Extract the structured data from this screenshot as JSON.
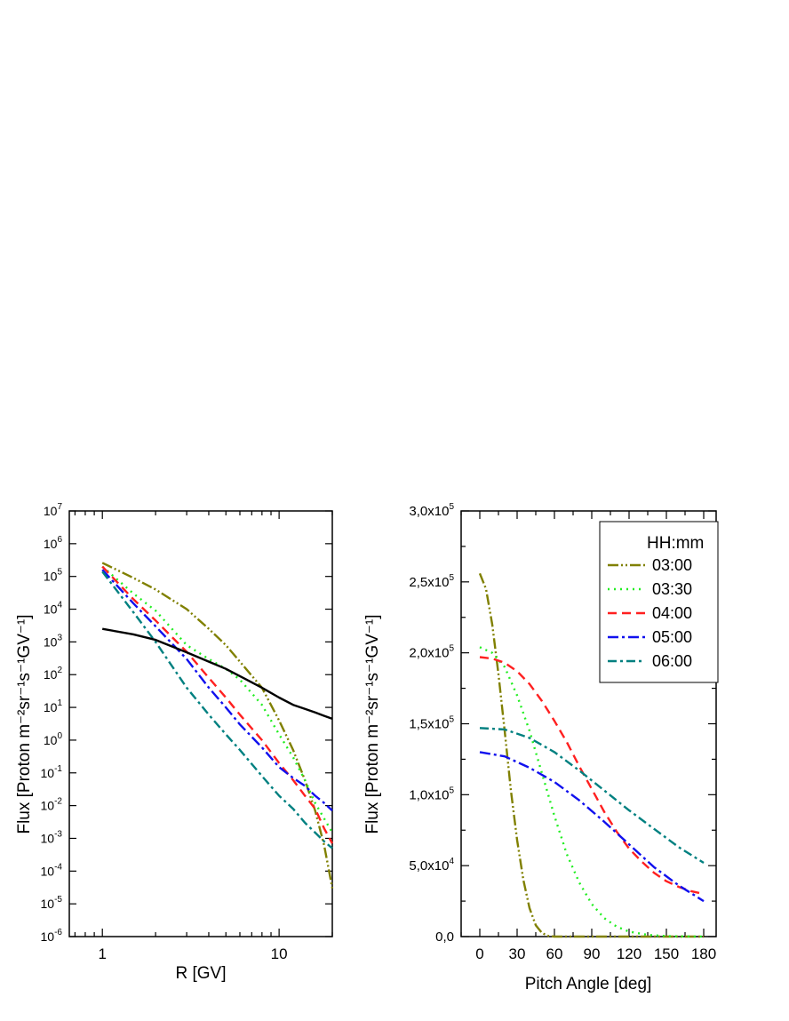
{
  "chart_data": [
    {
      "type": "line",
      "xlabel": "R [GV]",
      "ylabel": "Flux [Proton m⁻²sr⁻¹s⁻¹GV⁻¹]",
      "xscale": "log",
      "yscale": "log",
      "xlim": [
        0.65,
        20
      ],
      "ylim": [
        1e-06,
        10000000.0
      ],
      "xticks": [
        {
          "v": 1,
          "label": "1"
        },
        {
          "v": 10,
          "label": "10"
        }
      ],
      "yticks_exponents": [
        -6,
        -5,
        -4,
        -3,
        -2,
        -1,
        0,
        1,
        2,
        3,
        4,
        5,
        6,
        7
      ],
      "ytick_base": "10",
      "grid": false,
      "series": [
        {
          "color": "#808000",
          "dash": "12,3,2,3,2,3",
          "x": [
            1,
            1.5,
            2,
            3,
            4,
            5,
            6,
            8,
            10,
            12,
            14,
            16,
            18,
            20
          ],
          "y": [
            260000,
            90000,
            40000,
            10000,
            2500,
            800,
            250,
            40,
            4,
            0.5,
            0.06,
            0.007,
            0.0006,
            3e-05
          ]
        },
        {
          "color": "#22ee22",
          "dash": "2,5",
          "x": [
            1,
            1.5,
            2,
            3,
            4,
            5,
            6,
            8,
            10,
            12,
            14,
            16,
            18,
            20
          ],
          "y": [
            200000,
            30000,
            9000,
            800,
            300,
            150,
            70,
            12,
            1.5,
            0.3,
            0.06,
            0.012,
            0.004,
            0.0015
          ]
        },
        {
          "color": "#ff2020",
          "dash": "10,6",
          "x": [
            1,
            1.5,
            2,
            3,
            4,
            5,
            6,
            8,
            10,
            12,
            14,
            16,
            18,
            20
          ],
          "y": [
            200000,
            20000,
            4500,
            500,
            80,
            20,
            6,
            1,
            0.2,
            0.06,
            0.02,
            0.008,
            0.002,
            0.0007
          ]
        },
        {
          "color": "#1010ee",
          "dash": "12,4,3,4",
          "x": [
            1,
            1.5,
            2,
            3,
            4,
            5,
            6,
            8,
            10,
            12,
            14,
            16,
            18,
            20
          ],
          "y": [
            160000,
            15000,
            3000,
            300,
            40,
            10,
            3,
            0.6,
            0.15,
            0.07,
            0.04,
            0.02,
            0.012,
            0.007
          ]
        },
        {
          "color": "#008080",
          "dash": "10,4,3,4",
          "x": [
            1,
            1.5,
            2,
            3,
            4,
            5,
            6,
            8,
            10,
            12,
            14,
            16,
            18,
            20
          ],
          "y": [
            140000,
            8000,
            1000,
            40,
            6,
            1.5,
            0.5,
            0.08,
            0.02,
            0.008,
            0.003,
            0.0015,
            0.0008,
            0.0005
          ]
        },
        {
          "color": "#000000",
          "dash": "",
          "x": [
            1,
            1.5,
            2,
            3,
            4,
            5,
            6,
            8,
            10,
            12,
            14,
            16,
            18,
            20
          ],
          "y": [
            2500,
            1700,
            1150,
            480,
            250,
            150,
            90,
            40,
            20,
            12,
            9,
            7,
            5.5,
            4.5
          ]
        }
      ]
    },
    {
      "type": "line",
      "xlabel": "Pitch Angle [deg]",
      "ylabel": "Flux [Proton m⁻²sr⁻¹s⁻¹GV⁻¹]",
      "xlim": [
        -15,
        190
      ],
      "ylim": [
        0,
        300000
      ],
      "xticks": [
        0,
        30,
        60,
        90,
        120,
        150,
        180
      ],
      "yticks": [
        {
          "v": 0,
          "m": "0,0",
          "e": ""
        },
        {
          "v": 50000,
          "m": "5,0x10",
          "e": "4"
        },
        {
          "v": 100000,
          "m": "1,0x10",
          "e": "5"
        },
        {
          "v": 150000,
          "m": "1,5x10",
          "e": "5"
        },
        {
          "v": 200000,
          "m": "2,0x10",
          "e": "5"
        },
        {
          "v": 250000,
          "m": "2,5x10",
          "e": "5"
        },
        {
          "v": 300000,
          "m": "3,0x10",
          "e": "5"
        }
      ],
      "legend": {
        "title": "HH:mm",
        "position": "top-right"
      },
      "series": [
        {
          "name": "03:00",
          "color": "#808000",
          "dash": "12,3,2,3,2,3",
          "x": [
            0,
            5,
            10,
            15,
            20,
            25,
            30,
            35,
            40,
            45,
            50,
            55,
            60,
            90,
            120,
            150,
            180
          ],
          "y": [
            256000,
            245000,
            220000,
            185000,
            145000,
            103000,
            68000,
            40000,
            20000,
            8000,
            2500,
            500,
            0,
            0,
            0,
            0,
            0
          ]
        },
        {
          "name": "03:30",
          "color": "#22ee22",
          "dash": "2,5",
          "x": [
            0,
            10,
            20,
            30,
            40,
            50,
            60,
            70,
            80,
            90,
            100,
            110,
            120,
            135,
            150,
            165,
            180
          ],
          "y": [
            204000,
            200000,
            190000,
            170000,
            145000,
            115000,
            85000,
            58000,
            38000,
            23000,
            13000,
            7000,
            3500,
            1200,
            300,
            100,
            0
          ]
        },
        {
          "name": "04:00",
          "color": "#ff2020",
          "dash": "10,6",
          "x": [
            0,
            10,
            20,
            30,
            40,
            50,
            60,
            70,
            80,
            90,
            100,
            110,
            120,
            130,
            140,
            150,
            160,
            170,
            180
          ],
          "y": [
            197000,
            196000,
            193000,
            187000,
            178000,
            166000,
            152000,
            137000,
            120000,
            104000,
            88000,
            74000,
            62000,
            53000,
            45000,
            39000,
            35000,
            32000,
            30000
          ]
        },
        {
          "name": "05:00",
          "color": "#1010ee",
          "dash": "12,4,3,4",
          "x": [
            0,
            20,
            40,
            60,
            80,
            100,
            120,
            140,
            160,
            180
          ],
          "y": [
            130000,
            127000,
            119000,
            109000,
            96000,
            81000,
            65000,
            49000,
            36000,
            25000
          ]
        },
        {
          "name": "06:00",
          "color": "#008080",
          "dash": "10,4,3,4",
          "x": [
            0,
            20,
            40,
            60,
            80,
            100,
            120,
            140,
            160,
            180
          ],
          "y": [
            147000,
            146000,
            140000,
            130000,
            117000,
            103000,
            89000,
            76000,
            63000,
            52000
          ]
        }
      ]
    }
  ]
}
